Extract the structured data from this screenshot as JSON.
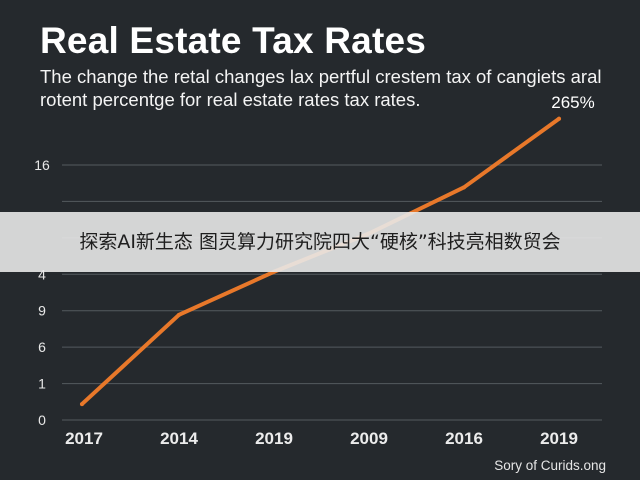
{
  "header": {
    "title": "Real Estate Tax Rates",
    "subtitle": "The change the retal changes lax pertful crestem tax of cangiets aral rotent percentge for real estate rates tax rates."
  },
  "chart_data": {
    "type": "line",
    "title": "Real Estate Tax Rates",
    "subtitle": "The change the retal changes lax pertful crestem tax of cangiets aral rotent percentge for real estate rates tax rates.",
    "xlabel": "",
    "ylabel": "",
    "categories": [
      "2017",
      "2014",
      "2019",
      "2009",
      "2016",
      "2019"
    ],
    "y_ticks": [
      "0",
      "1",
      "6",
      "9",
      "4",
      "",
      "",
      "16"
    ],
    "series": [
      {
        "values": [
          1,
          6.6,
          9.3,
          11.7,
          14.6,
          18.9
        ],
        "color": "#e8782a"
      }
    ],
    "annotation": "265%",
    "ylim": [
      0,
      16
    ],
    "grid": "horizontal",
    "line_color": "#e8782a"
  },
  "banner": {
    "text": "探索AI新生态 图灵算力研究院四大“硬核”科技亮相数贸会"
  },
  "credit": "Sory of Curids.ong",
  "colors": {
    "background": "#25292d",
    "grid": "#555a5f",
    "line": "#e8782a"
  }
}
